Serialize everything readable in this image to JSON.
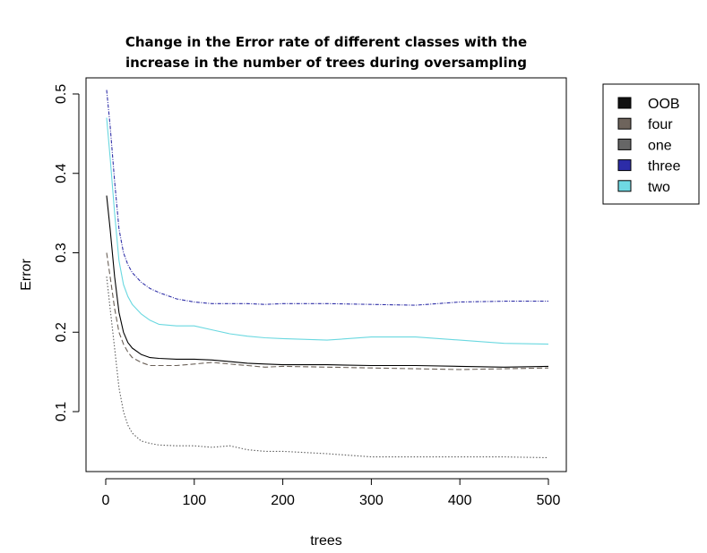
{
  "chart_data": {
    "type": "line",
    "title": "Change in the Error rate of different classes with the increase in the number of trees during oversampling",
    "title_lines": [
      "Change in the Error rate of different classes with the",
      "increase in the number of trees during oversampling"
    ],
    "xlabel": "trees",
    "ylabel": "Error",
    "xlim": [
      0,
      500
    ],
    "ylim": [
      0.03,
      0.51
    ],
    "xticks": [
      "0",
      "100",
      "200",
      "300",
      "400",
      "500"
    ],
    "yticks": [
      "0.1",
      "0.2",
      "0.3",
      "0.4",
      "0.5"
    ],
    "grid": false,
    "legend_position": "top-right, outside plot",
    "x": [
      1,
      5,
      10,
      15,
      20,
      25,
      30,
      40,
      50,
      60,
      80,
      100,
      120,
      140,
      160,
      180,
      200,
      250,
      300,
      350,
      400,
      450,
      500
    ],
    "series": [
      {
        "name": "OOB",
        "color": "#000000",
        "legend_swatch": "#111111",
        "dash": "none",
        "values": [
          0.372,
          0.33,
          0.27,
          0.225,
          0.2,
          0.187,
          0.18,
          0.172,
          0.168,
          0.167,
          0.166,
          0.166,
          0.165,
          0.163,
          0.161,
          0.16,
          0.159,
          0.159,
          0.158,
          0.158,
          0.157,
          0.156,
          0.157
        ]
      },
      {
        "name": "four",
        "color": "#6b6158",
        "legend_swatch": "#6e645c",
        "dash": "6,3",
        "values": [
          0.3,
          0.27,
          0.23,
          0.2,
          0.185,
          0.175,
          0.168,
          0.162,
          0.158,
          0.158,
          0.158,
          0.16,
          0.162,
          0.16,
          0.158,
          0.156,
          0.157,
          0.156,
          0.155,
          0.154,
          0.153,
          0.154,
          0.155
        ]
      },
      {
        "name": "one",
        "color": "#5e5e5e",
        "legend_swatch": "#666666",
        "dash": "1.5,2",
        "values": [
          0.27,
          0.23,
          0.18,
          0.13,
          0.1,
          0.083,
          0.073,
          0.063,
          0.06,
          0.058,
          0.057,
          0.057,
          0.055,
          0.057,
          0.052,
          0.05,
          0.05,
          0.047,
          0.043,
          0.043,
          0.043,
          0.043,
          0.042
        ]
      },
      {
        "name": "three",
        "color": "#3030a8",
        "legend_swatch": "#2c2ca8",
        "dash": "4,1.5,1,1.5",
        "values": [
          0.505,
          0.46,
          0.39,
          0.33,
          0.3,
          0.285,
          0.275,
          0.263,
          0.255,
          0.25,
          0.242,
          0.238,
          0.236,
          0.236,
          0.236,
          0.235,
          0.236,
          0.236,
          0.235,
          0.234,
          0.238,
          0.239,
          0.239
        ]
      },
      {
        "name": "two",
        "color": "#6ad8e0",
        "legend_swatch": "#6fd9e3",
        "dash": "none",
        "values": [
          0.47,
          0.42,
          0.35,
          0.29,
          0.26,
          0.245,
          0.235,
          0.223,
          0.215,
          0.21,
          0.208,
          0.208,
          0.203,
          0.198,
          0.195,
          0.193,
          0.192,
          0.19,
          0.194,
          0.194,
          0.19,
          0.186,
          0.185
        ]
      }
    ]
  }
}
